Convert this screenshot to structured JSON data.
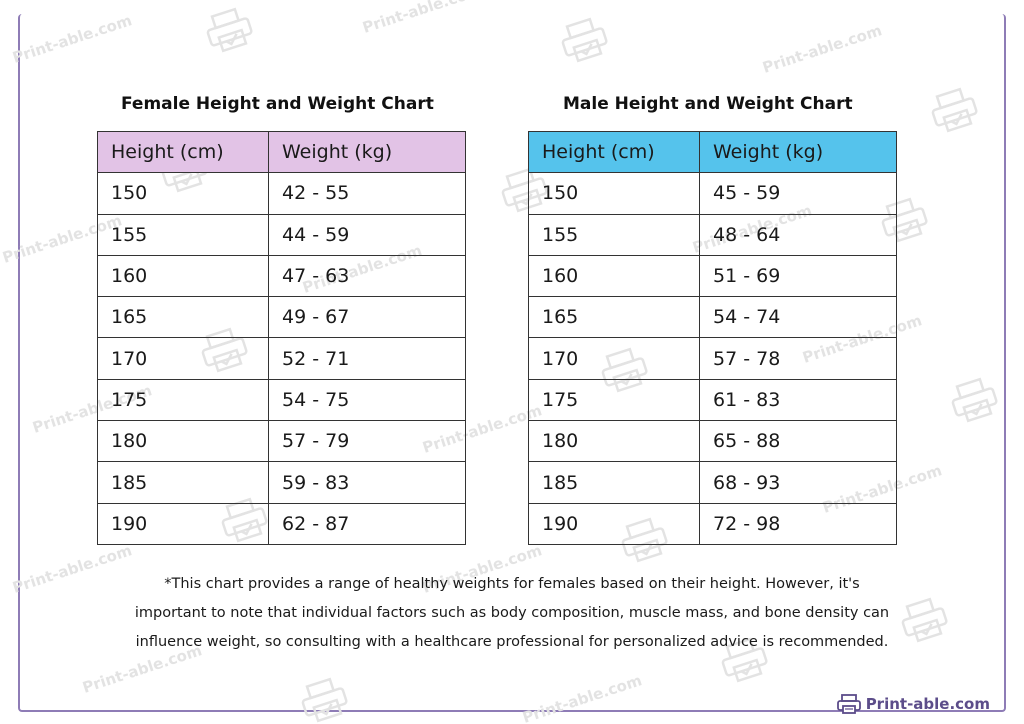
{
  "female": {
    "title": "Female Height and Weight Chart",
    "header_color": "#e2c3e6",
    "headers": [
      "Height (cm)",
      "Weight (kg)"
    ],
    "rows": [
      [
        "150",
        "42 - 55"
      ],
      [
        "155",
        "44 - 59"
      ],
      [
        "160",
        "47 - 63"
      ],
      [
        "165",
        "49 - 67"
      ],
      [
        "170",
        "52 - 71"
      ],
      [
        "175",
        "54 - 75"
      ],
      [
        "180",
        "57 - 79"
      ],
      [
        "185",
        "59 - 83"
      ],
      [
        "190",
        "62 - 87"
      ]
    ]
  },
  "male": {
    "title": "Male Height and Weight Chart",
    "header_color": "#55c3ec",
    "headers": [
      "Height (cm)",
      "Weight (kg)"
    ],
    "rows": [
      [
        "150",
        "45 - 59"
      ],
      [
        "155",
        "48 - 64"
      ],
      [
        "160",
        "51 - 69"
      ],
      [
        "165",
        "54 - 74"
      ],
      [
        "170",
        "57 - 78"
      ],
      [
        "175",
        "61 - 83"
      ],
      [
        "180",
        "65 - 88"
      ],
      [
        "185",
        "68 - 93"
      ],
      [
        "190",
        "72 - 98"
      ]
    ]
  },
  "footnote": {
    "line1": "*This chart provides a range of healthy weights for females based on their height. However, it's",
    "line2": "important to note that individual factors such as body composition, muscle mass, and bone density can",
    "line3": "influence weight, so consulting with a healthcare professional for personalized advice is recommended."
  },
  "brand": {
    "text": "Print-able.com",
    "icon": "printer-icon",
    "color": "#5c4d8a"
  },
  "watermark": {
    "text": "Print-able.com",
    "icon": "printer-icon"
  },
  "frame_color": "#8e7cb6"
}
